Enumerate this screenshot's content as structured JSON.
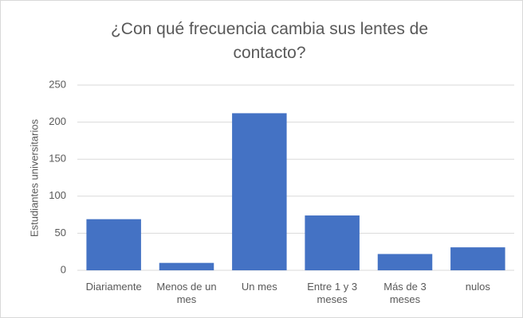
{
  "chart_data": {
    "type": "bar",
    "title": "¿Con qué frecuencia cambia sus lentes de contacto?",
    "y_label": "Estudiantes universitarios",
    "categories": [
      "Diariamente",
      "Menos de un mes",
      "Un mes",
      "Entre 1 y 3 meses",
      "Más de 3 meses",
      "nulos"
    ],
    "values": [
      69,
      10,
      212,
      74,
      22,
      31
    ],
    "color": "#4472c4",
    "ylim": [
      0,
      250
    ],
    "yticks": [
      0,
      50,
      100,
      150,
      200,
      250
    ],
    "grid": true
  }
}
